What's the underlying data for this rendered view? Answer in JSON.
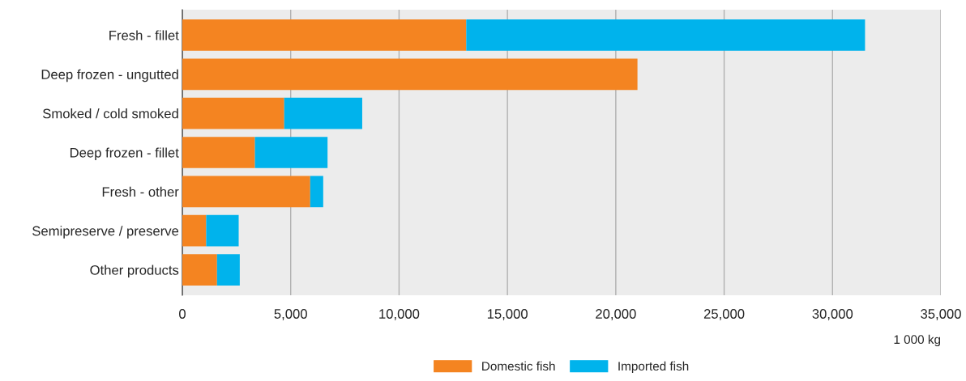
{
  "chart_data": {
    "type": "bar",
    "orientation": "horizontal",
    "stacked": true,
    "categories": [
      "Fresh - fillet",
      "Deep frozen - ungutted",
      "Smoked / cold smoked",
      "Deep frozen - fillet",
      "Fresh - other",
      "Semipreserve / preserve",
      "Other products"
    ],
    "series": [
      {
        "name": "Domestic fish",
        "color": "#f48421",
        "values": [
          13100,
          21000,
          4700,
          3350,
          5900,
          1100,
          1600
        ]
      },
      {
        "name": "Imported fish",
        "color": "#00b3ec",
        "values": [
          18400,
          null,
          3600,
          3350,
          600,
          1500,
          1050
        ]
      }
    ],
    "xlim": [
      0,
      35000
    ],
    "xticks": [
      {
        "value": 0,
        "label": "0"
      },
      {
        "value": 5000,
        "label": "5,000"
      },
      {
        "value": 10000,
        "label": "10,000"
      },
      {
        "value": 15000,
        "label": "15,000"
      },
      {
        "value": 20000,
        "label": "20,000"
      },
      {
        "value": 25000,
        "label": "25,000"
      },
      {
        "value": 30000,
        "label": "30,000"
      },
      {
        "value": 35000,
        "label": "35,000"
      }
    ],
    "xlabel": "1 000 kg",
    "grid": "x",
    "legend": "bottom"
  }
}
